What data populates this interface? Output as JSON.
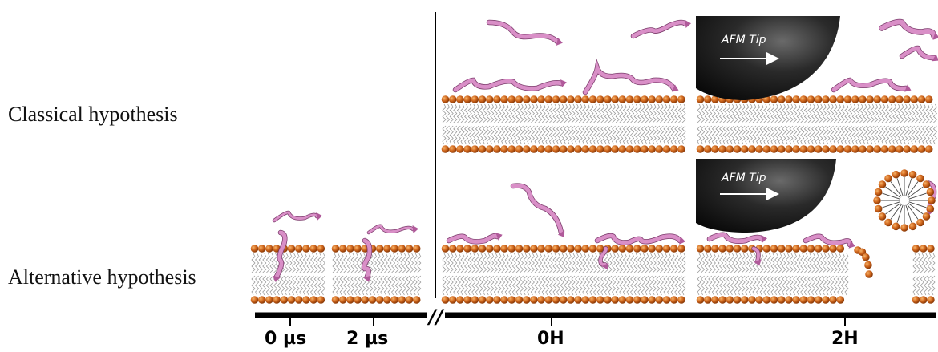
{
  "rows": {
    "classical": "Classical hypothesis",
    "alternative": "Alternative hypothesis"
  },
  "timeline": {
    "labels": [
      "0 µs",
      "2 µs",
      "0H",
      "2H"
    ],
    "break_mark": "//"
  },
  "afm": {
    "label": "AFM Tip"
  },
  "colors": {
    "lipid_head": "#c8601a",
    "lipid_head_light": "#f0a050",
    "lipid_tail": "#9a9a9a",
    "protein": "#d98fc7",
    "afm_tip": "#1c1c1c",
    "timeline": "#000000"
  },
  "icons": {
    "protein": "protein-ribbon-icon",
    "afm_tip": "afm-tip-icon",
    "micelle": "micelle-icon"
  }
}
